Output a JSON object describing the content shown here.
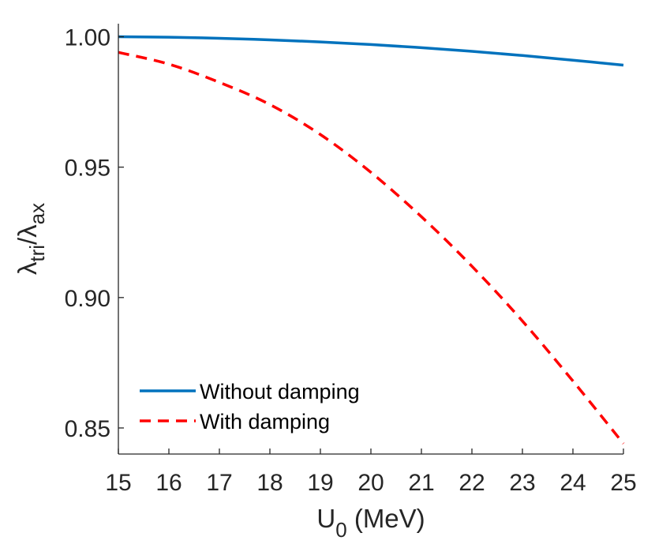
{
  "chart_data": {
    "type": "line",
    "title": "",
    "xlabel": {
      "main": "U",
      "sub": "0",
      "rest": " (MeV)"
    },
    "ylabel": {
      "num_sym": "λ",
      "num_sub": "tri",
      "slash": "/",
      "den_sym": "λ",
      "den_sub": "ax"
    },
    "xlim": [
      15,
      25
    ],
    "ylim": [
      0.84,
      1.005
    ],
    "xticks": [
      15,
      16,
      17,
      18,
      19,
      20,
      21,
      22,
      23,
      24,
      25
    ],
    "xtick_labels": [
      "15",
      "16",
      "17",
      "18",
      "19",
      "20",
      "21",
      "22",
      "23",
      "24",
      "25"
    ],
    "yticks": [
      0.85,
      0.9,
      0.95,
      1.0
    ],
    "ytick_labels": [
      "0.85",
      "0.90",
      "0.95",
      "1.00"
    ],
    "grid": false,
    "legend_position": "bottom-left",
    "series": [
      {
        "name": "Without damping",
        "color": "#0072BD",
        "style": "solid",
        "x": [
          15,
          16,
          17,
          18,
          19,
          20,
          21,
          22,
          23,
          24,
          25
        ],
        "y": [
          1.0,
          0.9998,
          0.9994,
          0.9988,
          0.998,
          0.997,
          0.9958,
          0.9944,
          0.9928,
          0.991,
          0.9891
        ]
      },
      {
        "name": "With damping",
        "color": "#FF0000",
        "style": "dashed",
        "x": [
          15,
          16,
          17,
          18,
          19,
          20,
          21,
          22,
          23,
          24,
          25
        ],
        "y": [
          0.994,
          0.9895,
          0.9825,
          0.974,
          0.9625,
          0.948,
          0.931,
          0.912,
          0.891,
          0.868,
          0.844
        ]
      }
    ]
  }
}
